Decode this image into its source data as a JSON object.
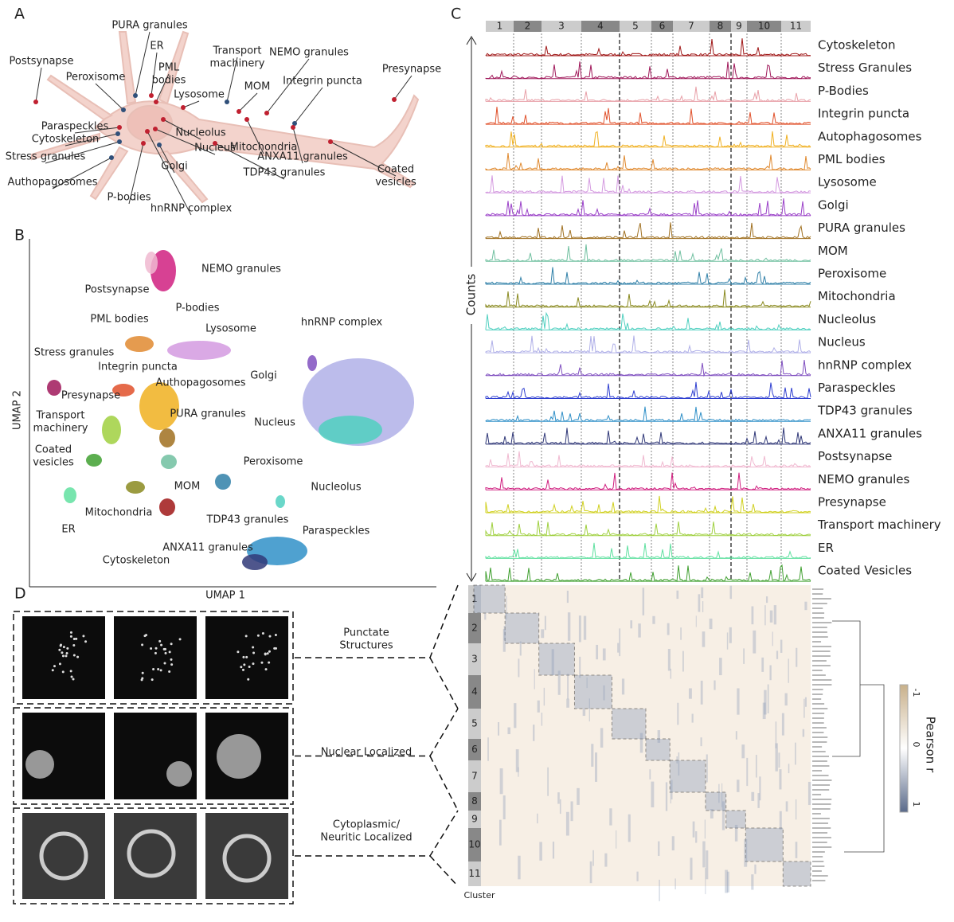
{
  "panels": {
    "A": {
      "label": "A",
      "structures": [
        [
          "PURA granules"
        ],
        [
          "ER"
        ],
        [
          "PML",
          "bodies"
        ],
        [
          "Transport",
          "machinery"
        ],
        [
          "NEMO granules"
        ],
        [
          "Postsynapse"
        ],
        [
          "Peroxisome"
        ],
        [
          "Lysosome"
        ],
        [
          "MOM"
        ],
        [
          "Integrin puncta"
        ],
        [
          "Presynapse"
        ],
        [
          "Paraspeckles"
        ],
        [
          "Cytoskeleton"
        ],
        [
          "Nucleolus"
        ],
        [
          "Mitochondria"
        ],
        [
          "Stress granules"
        ],
        [
          "Nucleus"
        ],
        [
          "ANXA11 granules"
        ],
        [
          "Golgi"
        ],
        [
          "TDP43 granules"
        ],
        [
          "Coated",
          "vesicles"
        ],
        [
          "Authopagosomes"
        ],
        [
          "P-bodies"
        ],
        [
          "hnRNP complex"
        ]
      ]
    },
    "B": {
      "label": "B",
      "x_axis": "UMAP 1",
      "y_axis": "UMAP 2",
      "clusters": [
        [
          "NEMO granules"
        ],
        [
          "Postsynapse"
        ],
        [
          "PML bodies"
        ],
        [
          "P-bodies"
        ],
        [
          "Lysosome"
        ],
        [
          "hnRNP complex"
        ],
        [
          "Stress granules"
        ],
        [
          "Integrin puncta"
        ],
        [
          "Golgi"
        ],
        [
          "Presynapse"
        ],
        [
          "Authopagosomes"
        ],
        [
          "Transport",
          "machinery"
        ],
        [
          "PURA granules"
        ],
        [
          "Nucleus"
        ],
        [
          "Coated",
          "vesicles"
        ],
        [
          "Peroxisome"
        ],
        [
          "MOM"
        ],
        [
          "Nucleolus"
        ],
        [
          "Mitochondria"
        ],
        [
          "ER"
        ],
        [
          "TDP43 granules"
        ],
        [
          "Paraspeckles"
        ],
        [
          "ANXA11 granules"
        ],
        [
          "Cytoskeleton"
        ]
      ]
    },
    "C": {
      "label": "C",
      "y_axis": "Counts",
      "x_axis": "Cluster",
      "clusters": [
        "1",
        "2",
        "3",
        "4",
        "5",
        "6",
        "7",
        "8",
        "9",
        "10",
        "11"
      ],
      "tracks": [
        {
          "name": "Cytoskeleton",
          "color": "#a01818"
        },
        {
          "name": "Stress Granules",
          "color": "#a0185a"
        },
        {
          "name": "P-Bodies",
          "color": "#e8a0a8"
        },
        {
          "name": "Integrin puncta",
          "color": "#e0502a"
        },
        {
          "name": "Autophagosomes",
          "color": "#f0b020"
        },
        {
          "name": "PML bodies",
          "color": "#e08a30"
        },
        {
          "name": "Lysosome",
          "color": "#d49ae0"
        },
        {
          "name": "Golgi",
          "color": "#9a40c8"
        },
        {
          "name": "PURA granules",
          "color": "#a07020"
        },
        {
          "name": "MOM",
          "color": "#70c0a0"
        },
        {
          "name": "Peroxisome",
          "color": "#3080a8"
        },
        {
          "name": "Mitochondria",
          "color": "#8a8a20"
        },
        {
          "name": "Nucleolus",
          "color": "#50d0c0"
        },
        {
          "name": "Nucleus",
          "color": "#b0b0e8"
        },
        {
          "name": "hnRNP complex",
          "color": "#8050c0"
        },
        {
          "name": "Paraspeckles",
          "color": "#3040d0"
        },
        {
          "name": "TDP43 granules",
          "color": "#3090c8"
        },
        {
          "name": "ANXA11 granules",
          "color": "#303878"
        },
        {
          "name": "Postsynapse",
          "color": "#f0b8d0"
        },
        {
          "name": "NEMO granules",
          "color": "#d02080"
        },
        {
          "name": "Presynapse",
          "color": "#d0d020"
        },
        {
          "name": "Transport machinery",
          "color": "#a0d040"
        },
        {
          "name": "ER",
          "color": "#60e0a0"
        },
        {
          "name": "Coated Vesicles",
          "color": "#40a030"
        }
      ],
      "colorbar": {
        "title": "Pearson r",
        "ticks": [
          "-1",
          "0",
          "1"
        ]
      }
    },
    "D": {
      "label": "D",
      "groups": [
        [
          "Punctate",
          "Structures"
        ],
        [
          "Nuclear Localized"
        ],
        [
          "Cytoplasmic/",
          "Neuritic Localized"
        ]
      ]
    }
  }
}
